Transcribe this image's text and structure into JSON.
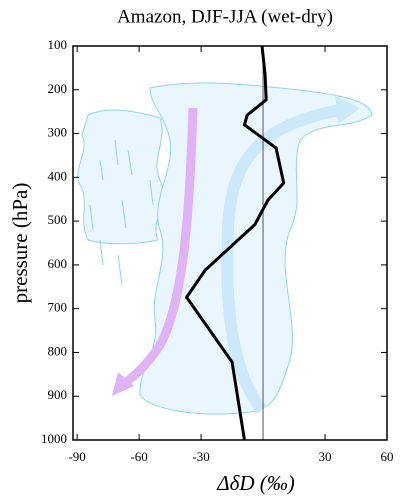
{
  "chart_data": {
    "type": "line",
    "title": "Amazon, DJF-JJA (wet-dry)",
    "x_label": "ΔδD (‰)",
    "y_label": "pressure (hPa)",
    "x": [
      -0.5,
      1,
      1.5,
      -7.7,
      -9,
      6.3,
      10,
      2.4,
      -4,
      -28,
      -37,
      -15,
      -9
    ],
    "y": [
      100,
      166,
      223,
      258,
      280,
      333,
      413,
      452,
      508,
      612,
      674,
      822,
      1000
    ],
    "color": "#000000",
    "xlim": [
      -92,
      60
    ],
    "xticks": [
      -90,
      -60,
      -30,
      30,
      60
    ],
    "ylim": [
      100,
      1000
    ],
    "yticks": [
      100,
      200,
      300,
      400,
      500,
      600,
      700,
      800,
      900,
      1000
    ],
    "y_inverted": true,
    "zero_line": true
  }
}
